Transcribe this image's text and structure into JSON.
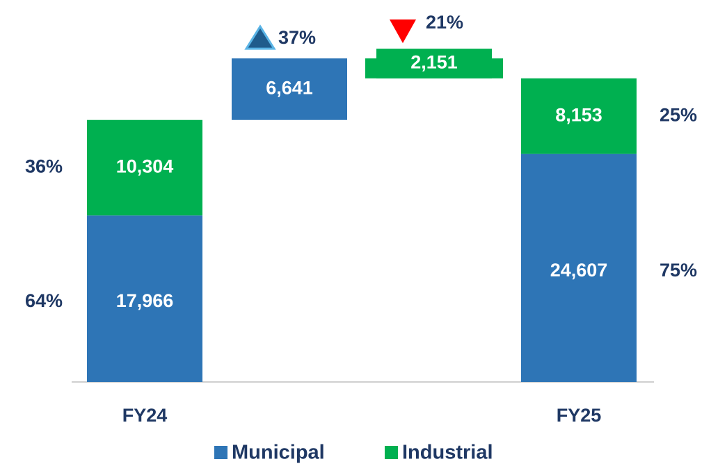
{
  "chart_data": {
    "type": "waterfall",
    "categories": [
      "FY24",
      null,
      null,
      "FY25"
    ],
    "series": [
      {
        "name": "Municipal",
        "color": "#2e75b6",
        "values": [
          17966,
          6641,
          null,
          24607
        ],
        "value_labels": [
          "17,966",
          "6,641",
          null,
          "24,607"
        ],
        "shares": [
          64,
          null,
          null,
          75
        ],
        "share_labels": [
          "64%",
          null,
          null,
          "75%"
        ]
      },
      {
        "name": "Industrial",
        "color": "#00b050",
        "values": [
          10304,
          null,
          -2151,
          8153
        ],
        "value_labels": [
          "10,304",
          null,
          "2,151",
          "8,153"
        ],
        "shares": [
          36,
          null,
          null,
          25
        ],
        "share_labels": [
          "36%",
          null,
          null,
          "25%"
        ]
      }
    ],
    "change_pct": [
      null,
      37,
      -21,
      null
    ],
    "change_labels": [
      null,
      "37%",
      "21%",
      null
    ],
    "legend": "bottom"
  }
}
